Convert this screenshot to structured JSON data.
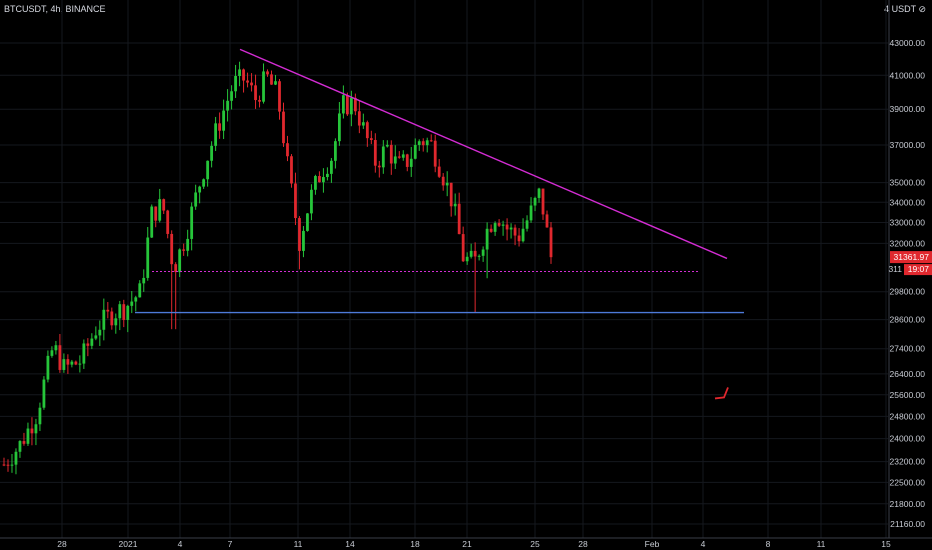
{
  "header": {
    "symbol_line": "BTCUSDT, 4h, BINANCE",
    "currency": "USDT",
    "icon_label": "4"
  },
  "price_label": {
    "price": "31361.97",
    "countdown": "19:07",
    "partial": "311",
    "color": "#e0282e"
  },
  "chart_data": {
    "type": "candlestick",
    "x_tick_labels": [
      "28",
      "2021",
      "4",
      "7",
      "11",
      "14",
      "18",
      "21",
      "25",
      "28",
      "Feb",
      "4",
      "8",
      "11",
      "15"
    ],
    "y_tick_values": [
      43000,
      41000,
      39000,
      37000,
      35000,
      34000,
      33000,
      32000,
      29800,
      28600,
      27400,
      26400,
      25600,
      24800,
      24000,
      23200,
      22500,
      21800,
      21160
    ],
    "y_scale": "log",
    "colors": {
      "up": "#26c53a",
      "down": "#e0282e",
      "trendline": "#d32cd3",
      "support": "#4d7ad9",
      "resistance_dotted": "#d32cd3",
      "projection": "#e0282e"
    },
    "candle_path": [
      {
        "t": 0,
        "p": 23100
      },
      {
        "t": 0.03,
        "p": 23800
      },
      {
        "t": 0.06,
        "p": 24900
      },
      {
        "t": 0.09,
        "p": 27500
      },
      {
        "t": 0.11,
        "p": 26600
      },
      {
        "t": 0.14,
        "p": 26900
      },
      {
        "t": 0.17,
        "p": 28300
      },
      {
        "t": 0.2,
        "p": 28900
      },
      {
        "t": 0.22,
        "p": 29100
      },
      {
        "t": 0.25,
        "p": 29800
      },
      {
        "t": 0.27,
        "p": 33400
      },
      {
        "t": 0.29,
        "p": 33900
      },
      {
        "t": 0.31,
        "p": 30800
      },
      {
        "t": 0.33,
        "p": 32200
      },
      {
        "t": 0.35,
        "p": 34200
      },
      {
        "t": 0.37,
        "p": 36200
      },
      {
        "t": 0.4,
        "p": 38800
      },
      {
        "t": 0.42,
        "p": 40500
      },
      {
        "t": 0.44,
        "p": 40800
      },
      {
        "t": 0.46,
        "p": 39600
      },
      {
        "t": 0.48,
        "p": 40900
      },
      {
        "t": 0.5,
        "p": 39800
      },
      {
        "t": 0.52,
        "p": 35500
      },
      {
        "t": 0.54,
        "p": 32100
      },
      {
        "t": 0.56,
        "p": 34200
      },
      {
        "t": 0.58,
        "p": 35600
      },
      {
        "t": 0.6,
        "p": 36400
      },
      {
        "t": 0.62,
        "p": 39200
      },
      {
        "t": 0.64,
        "p": 39400
      },
      {
        "t": 0.66,
        "p": 37600
      },
      {
        "t": 0.68,
        "p": 36000
      },
      {
        "t": 0.7,
        "p": 36900
      },
      {
        "t": 0.72,
        "p": 35800
      },
      {
        "t": 0.74,
        "p": 36200
      },
      {
        "t": 0.76,
        "p": 37300
      },
      {
        "t": 0.78,
        "p": 37100
      },
      {
        "t": 0.8,
        "p": 35600
      },
      {
        "t": 0.82,
        "p": 34000
      },
      {
        "t": 0.84,
        "p": 31300
      },
      {
        "t": 0.86,
        "p": 31100
      },
      {
        "t": 0.88,
        "p": 32500
      },
      {
        "t": 0.9,
        "p": 33500
      },
      {
        "t": 0.92,
        "p": 32700
      },
      {
        "t": 0.94,
        "p": 32300
      },
      {
        "t": 0.96,
        "p": 33300
      },
      {
        "t": 0.98,
        "p": 34500
      },
      {
        "t": 1,
        "p": 31362
      }
    ],
    "wick_spikes": [
      {
        "t": 0.31,
        "low": 28200
      },
      {
        "t": 0.54,
        "low": 30800
      },
      {
        "t": 0.86,
        "low": 28900
      },
      {
        "t": 0.88,
        "low": 30400
      }
    ],
    "trendline": {
      "from": {
        "x_label": "7",
        "p": 42600
      },
      "to": {
        "x_label": "4",
        "p": 31300
      }
    },
    "support_line": {
      "p": 28900
    },
    "dotted_line": {
      "p": 30700
    },
    "projection": [
      {
        "p": 30800
      },
      {
        "p": 29300
      },
      {
        "p": 32400
      },
      {
        "p": 30200
      },
      {
        "p": 25500
      }
    ]
  }
}
